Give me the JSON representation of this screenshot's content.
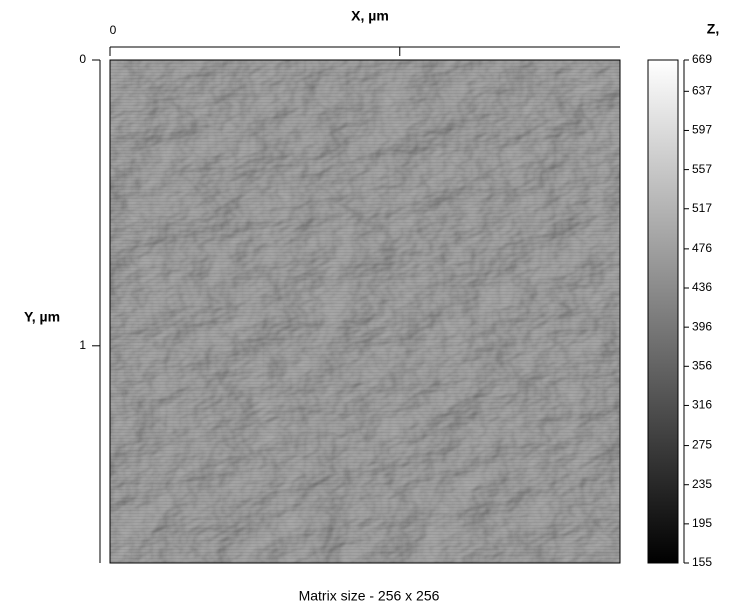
{
  "chart_data": {
    "type": "image",
    "x_label": "X, µm",
    "y_label": "Y, µm",
    "z_label": "Z,",
    "caption": "Matrix size - 256 x 256",
    "xlim": [
      0,
      1.76
    ],
    "xticks": [
      0,
      {
        "value": 1,
        "label": null
      }
    ],
    "ylim": [
      0,
      1.76
    ],
    "yticks": [
      0,
      1
    ],
    "zlim": [
      155,
      669
    ],
    "zticks": [
      669,
      637,
      597,
      557,
      517,
      476,
      436,
      396,
      356,
      316,
      275,
      235,
      195,
      155
    ],
    "colormap": [
      "#000000",
      "#ffffff"
    ]
  }
}
